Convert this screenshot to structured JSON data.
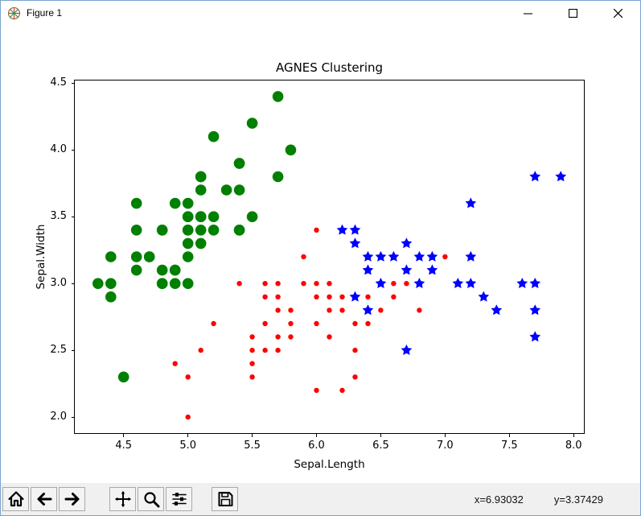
{
  "window": {
    "title": "Figure 1"
  },
  "colors": {
    "window_border": "#77a5d2",
    "toolbar_bg": "#f0f0f0"
  },
  "toolbar": {
    "buttons": [
      {
        "name": "home",
        "icon": "home-icon"
      },
      {
        "name": "back",
        "icon": "back-arrow-icon"
      },
      {
        "name": "forward",
        "icon": "forward-arrow-icon"
      },
      {
        "name": "pan",
        "icon": "pan-arrows-icon"
      },
      {
        "name": "zoom",
        "icon": "zoom-magnifier-icon"
      },
      {
        "name": "configure-subplots",
        "icon": "sliders-icon"
      },
      {
        "name": "save",
        "icon": "save-floppy-icon"
      }
    ],
    "coordinates": {
      "x": "x=6.93032",
      "y": "y=3.37429"
    }
  },
  "chart_data": {
    "type": "scatter",
    "title": "AGNES Clustering",
    "xlabel": "Sepal.Length",
    "ylabel": "Sepal.Width",
    "xlim": [
      4.12,
      8.08
    ],
    "ylim": [
      1.88,
      4.52
    ],
    "xticks": [
      4.5,
      5.0,
      5.5,
      6.0,
      6.5,
      7.0,
      7.5,
      8.0
    ],
    "yticks": [
      2.0,
      2.5,
      3.0,
      3.5,
      4.0,
      4.5
    ],
    "grid": false,
    "legend": "none",
    "series": [
      {
        "name": "cluster-1-green",
        "marker": "circle",
        "color": "#008000",
        "size": 6.8,
        "points": [
          [
            5.1,
            3.5
          ],
          [
            4.9,
            3.0
          ],
          [
            4.7,
            3.2
          ],
          [
            4.6,
            3.1
          ],
          [
            5.0,
            3.6
          ],
          [
            5.4,
            3.9
          ],
          [
            4.6,
            3.4
          ],
          [
            5.0,
            3.4
          ],
          [
            4.4,
            2.9
          ],
          [
            4.9,
            3.1
          ],
          [
            5.4,
            3.7
          ],
          [
            4.8,
            3.4
          ],
          [
            4.8,
            3.0
          ],
          [
            4.3,
            3.0
          ],
          [
            5.8,
            4.0
          ],
          [
            5.7,
            4.4
          ],
          [
            5.4,
            3.9
          ],
          [
            5.1,
            3.5
          ],
          [
            5.7,
            3.8
          ],
          [
            5.1,
            3.8
          ],
          [
            5.4,
            3.4
          ],
          [
            5.1,
            3.7
          ],
          [
            4.6,
            3.6
          ],
          [
            5.1,
            3.3
          ],
          [
            4.8,
            3.4
          ],
          [
            5.0,
            3.0
          ],
          [
            5.0,
            3.4
          ],
          [
            5.2,
            3.5
          ],
          [
            5.2,
            3.4
          ],
          [
            4.7,
            3.2
          ],
          [
            4.8,
            3.1
          ],
          [
            5.4,
            3.4
          ],
          [
            5.2,
            4.1
          ],
          [
            5.5,
            4.2
          ],
          [
            4.9,
            3.1
          ],
          [
            5.0,
            3.2
          ],
          [
            5.5,
            3.5
          ],
          [
            4.9,
            3.6
          ],
          [
            4.4,
            3.0
          ],
          [
            5.1,
            3.4
          ],
          [
            5.0,
            3.5
          ],
          [
            4.5,
            2.3
          ],
          [
            4.4,
            3.2
          ],
          [
            5.0,
            3.5
          ],
          [
            5.1,
            3.8
          ],
          [
            4.8,
            3.0
          ],
          [
            5.1,
            3.8
          ],
          [
            4.6,
            3.2
          ],
          [
            5.3,
            3.7
          ],
          [
            5.0,
            3.3
          ]
        ]
      },
      {
        "name": "cluster-2-red",
        "marker": "dot",
        "color": "#ff0000",
        "size": 3.2,
        "points": [
          [
            7.0,
            3.2
          ],
          [
            6.4,
            2.9
          ],
          [
            5.5,
            2.3
          ],
          [
            6.5,
            2.8
          ],
          [
            5.7,
            2.8
          ],
          [
            4.9,
            2.4
          ],
          [
            6.6,
            2.9
          ],
          [
            5.2,
            2.7
          ],
          [
            5.0,
            2.0
          ],
          [
            5.9,
            3.0
          ],
          [
            6.0,
            2.2
          ],
          [
            6.1,
            2.9
          ],
          [
            5.6,
            2.9
          ],
          [
            5.6,
            3.0
          ],
          [
            5.8,
            2.7
          ],
          [
            6.2,
            2.2
          ],
          [
            5.6,
            2.5
          ],
          [
            5.9,
            3.2
          ],
          [
            6.1,
            2.8
          ],
          [
            6.3,
            2.5
          ],
          [
            6.4,
            2.7
          ],
          [
            6.6,
            3.0
          ],
          [
            6.8,
            2.8
          ],
          [
            6.7,
            3.0
          ],
          [
            6.0,
            2.9
          ],
          [
            5.7,
            2.6
          ],
          [
            5.5,
            2.4
          ],
          [
            5.8,
            2.6
          ],
          [
            6.0,
            2.7
          ],
          [
            5.4,
            3.0
          ],
          [
            6.0,
            3.4
          ],
          [
            6.3,
            2.3
          ],
          [
            5.5,
            2.5
          ],
          [
            5.5,
            2.6
          ],
          [
            6.1,
            3.0
          ],
          [
            5.0,
            2.3
          ],
          [
            5.6,
            2.7
          ],
          [
            5.7,
            3.0
          ],
          [
            5.7,
            2.9
          ],
          [
            6.2,
            2.9
          ],
          [
            5.1,
            2.5
          ],
          [
            5.7,
            2.5
          ],
          [
            6.3,
            2.7
          ],
          [
            6.0,
            3.0
          ],
          [
            6.1,
            2.6
          ],
          [
            6.2,
            2.8
          ],
          [
            5.8,
            2.8
          ]
        ]
      },
      {
        "name": "cluster-3-blue",
        "marker": "star",
        "color": "#0000ff",
        "size": 7.2,
        "points": [
          [
            6.3,
            3.3
          ],
          [
            7.1,
            3.0
          ],
          [
            6.3,
            2.9
          ],
          [
            6.5,
            3.0
          ],
          [
            7.6,
            3.0
          ],
          [
            7.3,
            2.9
          ],
          [
            6.7,
            2.5
          ],
          [
            7.2,
            3.6
          ],
          [
            6.5,
            3.2
          ],
          [
            6.8,
            3.0
          ],
          [
            6.4,
            3.2
          ],
          [
            7.7,
            3.8
          ],
          [
            7.7,
            2.6
          ],
          [
            6.9,
            3.2
          ],
          [
            7.7,
            2.8
          ],
          [
            6.7,
            3.3
          ],
          [
            7.2,
            3.2
          ],
          [
            6.4,
            2.8
          ],
          [
            7.2,
            3.0
          ],
          [
            7.4,
            2.8
          ],
          [
            7.9,
            3.8
          ],
          [
            7.7,
            3.0
          ],
          [
            6.3,
            3.4
          ],
          [
            6.4,
            3.1
          ],
          [
            6.9,
            3.1
          ],
          [
            6.7,
            3.1
          ],
          [
            6.2,
            3.4
          ],
          [
            6.6,
            3.2
          ],
          [
            6.8,
            3.2
          ]
        ]
      }
    ]
  }
}
